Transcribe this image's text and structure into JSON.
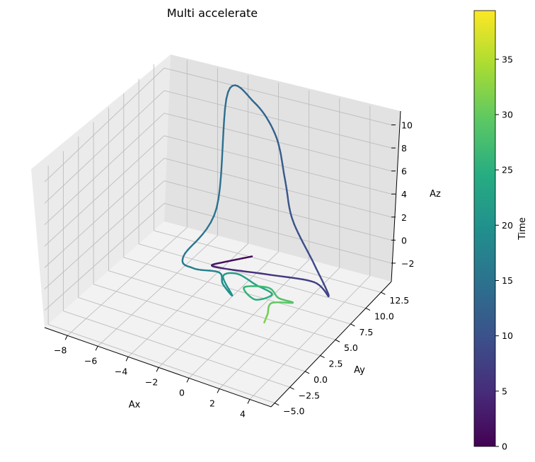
{
  "chart_data": {
    "type": "line",
    "projection": "3d",
    "title": "Multi accelerate",
    "xlabel": "Ax",
    "ylabel": "Ay",
    "zlabel": "Az",
    "xticks": [
      "−8",
      "−6",
      "−4",
      "−2",
      "0",
      "2",
      "4"
    ],
    "yticks": [
      "−5.0",
      "−2.5",
      "0.0",
      "2.5",
      "5.0",
      "7.5",
      "10.0",
      "12.5"
    ],
    "zticks": [
      "−2",
      "0",
      "2",
      "4",
      "6",
      "8",
      "10"
    ],
    "colorbar": {
      "label": "Time",
      "range": [
        0,
        39.4
      ],
      "colormap": "viridis",
      "ticks": [
        "0",
        "5",
        "10",
        "15",
        "20",
        "25",
        "30",
        "35"
      ]
    },
    "grid": true,
    "series": [
      {
        "points": [
          {
            "t": 0.0,
            "x": -1.2,
            "y": 7.8,
            "z": -0.2
          },
          {
            "t": 1.5,
            "x": -2.6,
            "y": 6.9,
            "z": -0.8
          },
          {
            "t": 3.0,
            "x": -3.2,
            "y": 6.2,
            "z": -1.0
          },
          {
            "t": 4.5,
            "x": -2.1,
            "y": 5.8,
            "z": -0.6
          },
          {
            "t": 6.0,
            "x": 0.5,
            "y": 6.5,
            "z": -0.4
          },
          {
            "t": 7.5,
            "x": 3.2,
            "y": 7.0,
            "z": -0.2
          },
          {
            "t": 8.0,
            "x": 4.4,
            "y": 6.4,
            "z": -0.6
          },
          {
            "t": 9.0,
            "x": 2.6,
            "y": 8.5,
            "z": 0.3
          },
          {
            "t": 10.0,
            "x": 0.4,
            "y": 10.5,
            "z": 2.2
          },
          {
            "t": 11.0,
            "x": -0.6,
            "y": 11.8,
            "z": 4.5
          },
          {
            "t": 12.0,
            "x": -1.6,
            "y": 12.8,
            "z": 7.5
          },
          {
            "t": 13.0,
            "x": -3.2,
            "y": 13.3,
            "z": 9.6
          },
          {
            "t": 14.0,
            "x": -4.6,
            "y": 12.4,
            "z": 10.6
          },
          {
            "t": 15.0,
            "x": -4.2,
            "y": 9.5,
            "z": 2.0
          },
          {
            "t": 16.0,
            "x": -5.3,
            "y": 6.8,
            "z": -1.4
          },
          {
            "t": 17.0,
            "x": -4.4,
            "y": 6.2,
            "z": -1.8
          },
          {
            "t": 18.0,
            "x": -2.8,
            "y": 6.4,
            "z": -1.6
          },
          {
            "t": 19.0,
            "x": -2.2,
            "y": 5.5,
            "z": -1.9
          },
          {
            "t": 20.0,
            "x": -1.3,
            "y": 4.8,
            "z": -2.2
          },
          {
            "t": 21.0,
            "x": -2.3,
            "y": 5.8,
            "z": -1.4
          },
          {
            "t": 22.0,
            "x": -1.6,
            "y": 6.4,
            "z": -1.2
          },
          {
            "t": 23.0,
            "x": -0.2,
            "y": 6.0,
            "z": -1.4
          },
          {
            "t": 24.0,
            "x": 1.0,
            "y": 5.6,
            "z": -1.5
          },
          {
            "t": 25.0,
            "x": 0.2,
            "y": 4.8,
            "z": -1.9
          },
          {
            "t": 26.0,
            "x": -0.8,
            "y": 5.5,
            "z": -1.6
          },
          {
            "t": 27.0,
            "x": 0.6,
            "y": 6.0,
            "z": -1.3
          },
          {
            "t": 28.0,
            "x": 1.5,
            "y": 5.4,
            "z": -1.5
          },
          {
            "t": 29.0,
            "x": 2.6,
            "y": 5.0,
            "z": -1.2
          },
          {
            "t": 30.0,
            "x": 1.2,
            "y": 5.0,
            "z": -1.9
          },
          {
            "t": 31.0,
            "x": 1.1,
            "y": 4.6,
            "z": -2.8
          },
          {
            "t": 32.0,
            "x": 1.0,
            "y": 4.3,
            "z": -3.5
          }
        ]
      }
    ]
  }
}
